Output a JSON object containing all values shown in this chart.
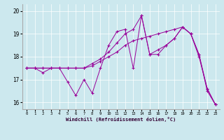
{
  "xlabel": "Windchill (Refroidissement éolien,°C)",
  "background_color": "#cce8ee",
  "line_color": "#990099",
  "xlim": [
    -0.5,
    23.5
  ],
  "ylim": [
    15.7,
    20.3
  ],
  "yticks": [
    16,
    17,
    18,
    19,
    20
  ],
  "xticks": [
    0,
    1,
    2,
    3,
    4,
    5,
    6,
    7,
    8,
    9,
    10,
    11,
    12,
    13,
    14,
    15,
    16,
    17,
    18,
    19,
    20,
    21,
    22,
    23
  ],
  "series": [
    [
      17.5,
      17.5,
      17.3,
      17.5,
      17.5,
      16.9,
      16.3,
      17.0,
      16.4,
      17.5,
      18.5,
      19.1,
      19.2,
      17.5,
      19.8,
      18.1,
      18.1,
      18.5,
      18.8,
      19.3,
      19.0,
      18.1,
      16.6,
      15.9
    ],
    [
      17.5,
      17.5,
      17.5,
      17.5,
      17.5,
      17.5,
      17.5,
      17.5,
      17.6,
      17.8,
      18.0,
      18.2,
      18.5,
      18.7,
      18.8,
      18.9,
      19.0,
      19.1,
      19.2,
      19.3,
      19.0,
      18.0,
      16.6,
      15.9
    ],
    [
      17.5,
      17.5,
      17.5,
      17.5,
      17.5,
      17.5,
      17.5,
      17.5,
      17.7,
      17.9,
      18.2,
      18.6,
      19.0,
      19.2,
      19.8,
      18.1,
      18.3,
      18.5,
      18.8,
      19.3,
      19.0,
      18.1,
      16.5,
      15.9
    ]
  ]
}
